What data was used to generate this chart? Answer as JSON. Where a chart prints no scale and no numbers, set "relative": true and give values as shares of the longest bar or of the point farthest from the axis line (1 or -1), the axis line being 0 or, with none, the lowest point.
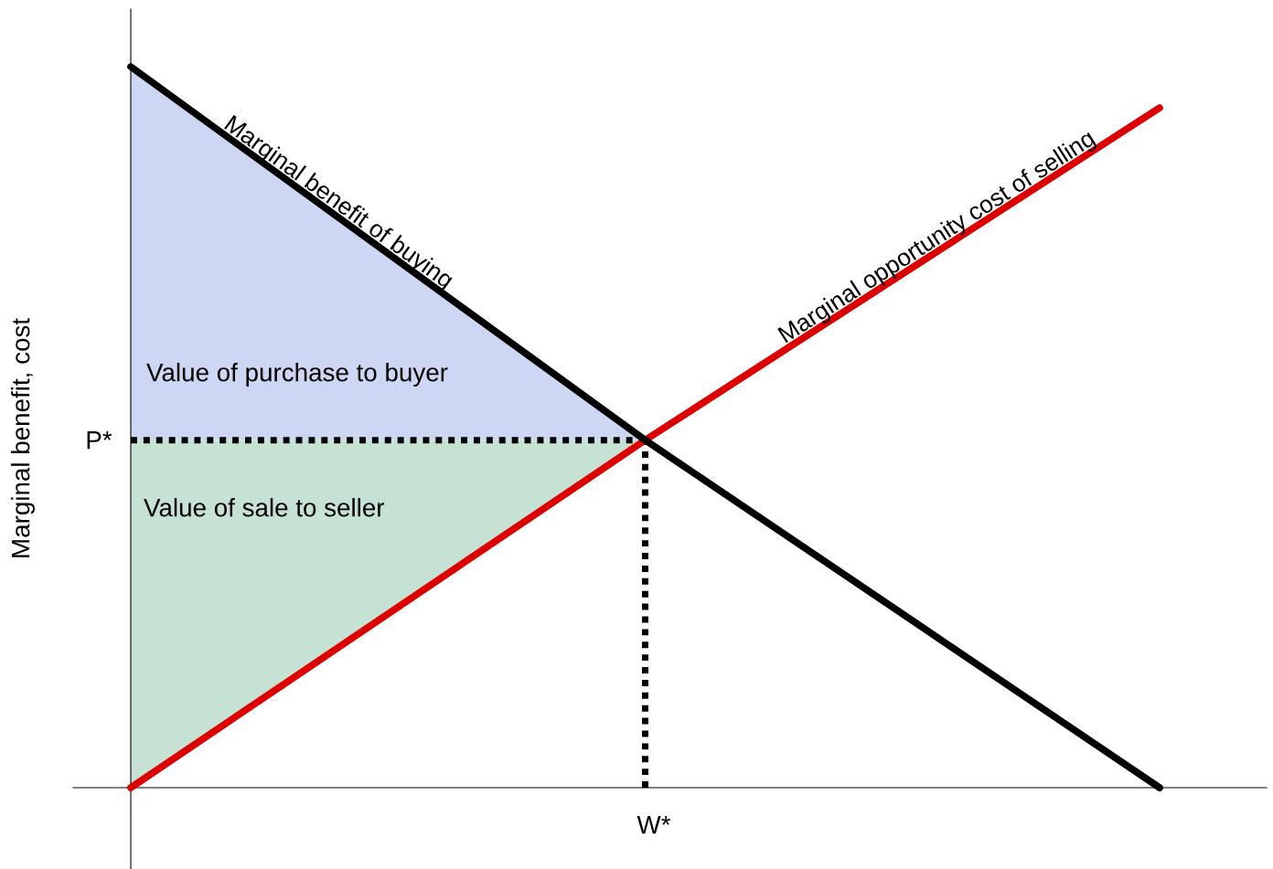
{
  "chart_data": {
    "type": "line",
    "relative": true,
    "ylabel": "Marginal benefit, cost",
    "categories": [
      null,
      null,
      null
    ],
    "series": [
      {
        "type": "area",
        "color": "#cdd6f2",
        "values": [
          1,
          0.482,
          null
        ]
      },
      {
        "type": "area",
        "color": "#c5e2d5",
        "values": [
          0.482,
          0.482,
          null
        ]
      },
      {
        "name": "Marginal opportunity cost of selling",
        "color": "#dd0000",
        "values": [
          0,
          0.482,
          0.943
        ]
      },
      {
        "name": "Marginal benefit of buying",
        "color": "#000000",
        "values": [
          1,
          0.482,
          0
        ]
      }
    ],
    "annotations": [
      "Value of purchase to buyer",
      "Value of sale to seller",
      "P*",
      "W*"
    ],
    "marker": "none",
    "line_style": "solid"
  }
}
